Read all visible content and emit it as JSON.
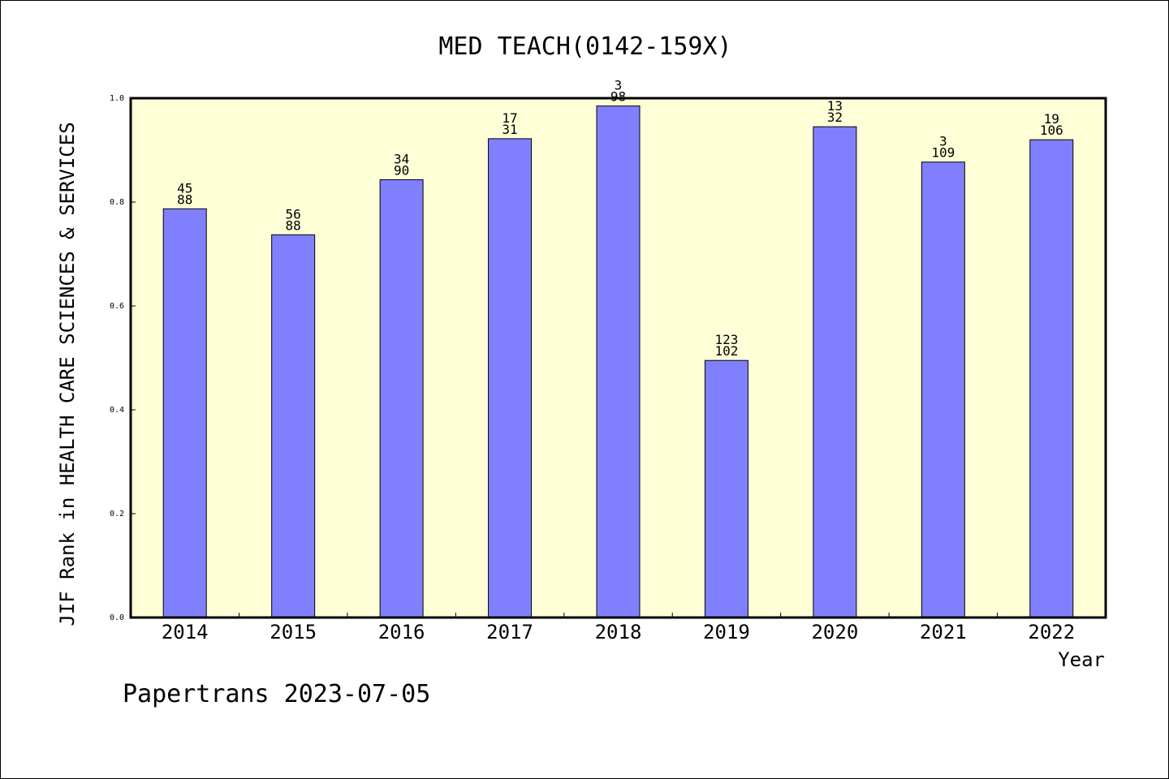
{
  "chart_data": {
    "type": "bar",
    "title": "MED TEACH(0142-159X)",
    "xlabel": "Year",
    "ylabel": "JIF Rank in HEALTH CARE SCIENCES & SERVICES",
    "ylim": [
      0,
      1.0
    ],
    "yticks": [
      "0.0",
      "0.2",
      "0.4",
      "0.6",
      "0.8",
      "1.0"
    ],
    "grid": false,
    "categories": [
      "2014",
      "2015",
      "2016",
      "2017",
      "2018",
      "2019",
      "2020",
      "2021",
      "2022"
    ],
    "values": [
      0.787,
      0.737,
      0.843,
      0.922,
      0.985,
      0.495,
      0.945,
      0.877,
      0.92
    ],
    "label_top": [
      "45",
      "56",
      "34",
      "17",
      "3",
      "123",
      "13",
      "3",
      "19"
    ],
    "label_bottom": [
      "88",
      "88",
      "90",
      "31",
      "98",
      "102",
      "32",
      "109",
      "106"
    ],
    "colors": {
      "plot_bg": "#ffffd7",
      "bar": "#8080ff"
    }
  },
  "footer": "Papertrans 2023-07-05"
}
